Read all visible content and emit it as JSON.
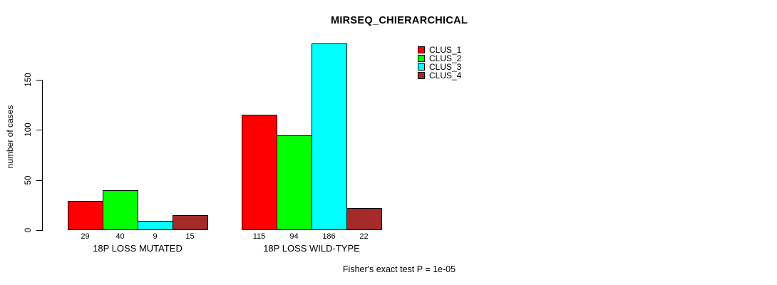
{
  "title": "MIRSEQ_CHIERARCHICAL",
  "footer": "Fisher's exact test P = 1e-05",
  "chart_data": {
    "type": "bar",
    "title": "MIRSEQ_CHIERARCHICAL",
    "xlabel": "",
    "ylabel": "number of cases",
    "categories": [
      "18P LOSS MUTATED",
      "18P LOSS WILD-TYPE"
    ],
    "series": [
      {
        "name": "CLUS_1",
        "color": "#FF0000",
        "values": [
          29,
          115
        ]
      },
      {
        "name": "CLUS_2",
        "color": "#00FF00",
        "values": [
          40,
          94
        ]
      },
      {
        "name": "CLUS_3",
        "color": "#00FFFF",
        "values": [
          9,
          186
        ]
      },
      {
        "name": "CLUS_4",
        "color": "#A52A2A",
        "values": [
          15,
          22
        ]
      }
    ],
    "bar_value_labels": [
      [
        "29",
        "40",
        "9",
        "15"
      ],
      [
        "115",
        "94",
        "186",
        "22"
      ]
    ],
    "yticks": [
      0,
      50,
      100,
      150
    ],
    "ylim": [
      0,
      186
    ],
    "grid": "off",
    "legend_position": "top-right",
    "annotation": "Fisher's exact test P = 1e-05"
  }
}
